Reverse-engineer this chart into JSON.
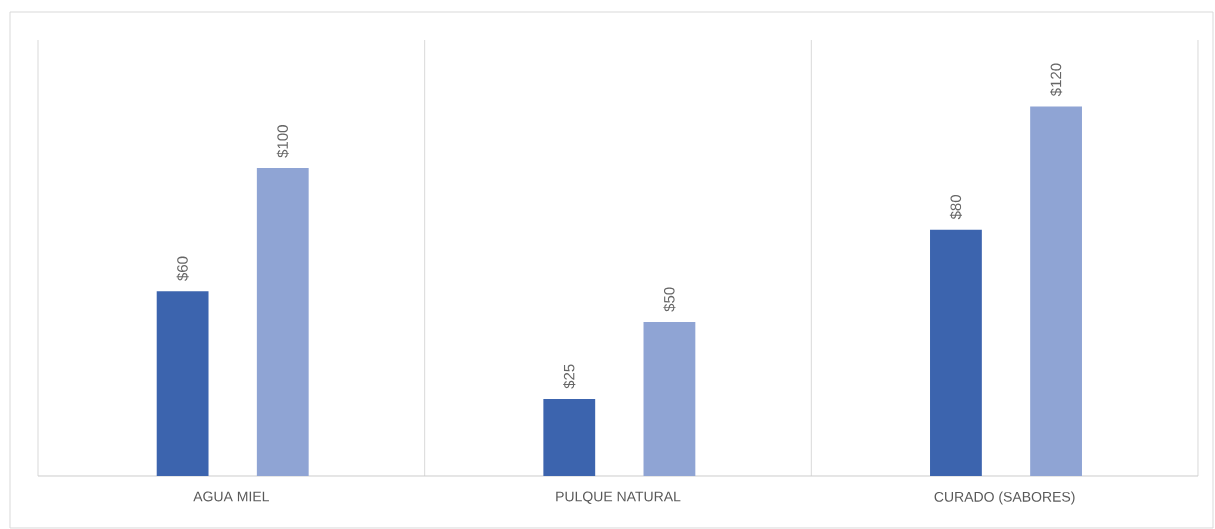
{
  "chart_data": {
    "type": "bar",
    "categories": [
      "AGUA MIEL",
      "PULQUE NATURAL",
      "CURADO (SABORES)"
    ],
    "series": [
      {
        "color": "#3c64ae",
        "values": [
          60,
          25,
          80
        ],
        "value_labels": [
          "$60",
          "$25",
          "$80"
        ]
      },
      {
        "color": "#8fa4d4",
        "values": [
          100,
          50,
          120
        ],
        "value_labels": [
          "$100",
          "$50",
          "$120"
        ]
      }
    ],
    "grid": "x"
  }
}
